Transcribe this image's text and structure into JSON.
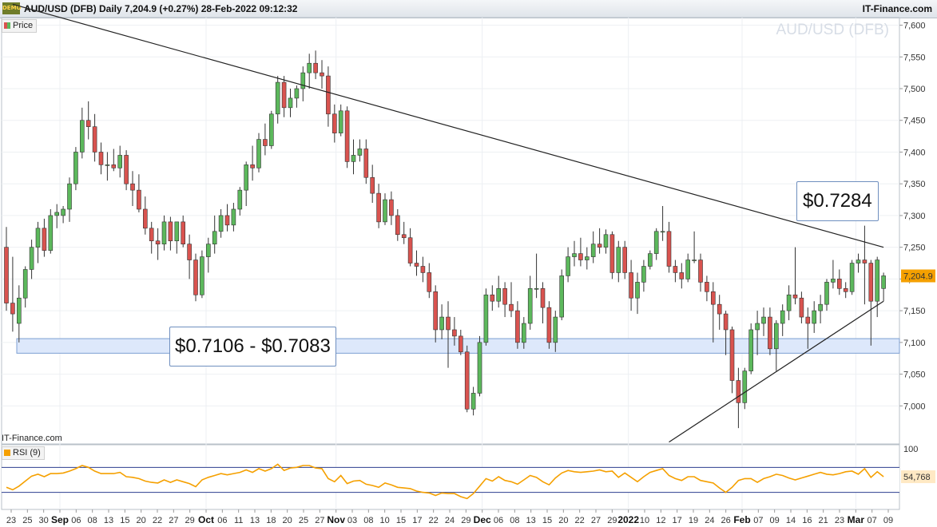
{
  "header": {
    "title": "AUD/USD (DFB) Daily 7,204.9 (+0.27%) 28-Feb-2022 09:12:32",
    "brand": "IT-Finance.com",
    "logo_text": "DEMO"
  },
  "watermark": "AUD/USD (DFB)",
  "source_label": "IT-Finance.com",
  "annotations": {
    "resistance_price": "$0.7284",
    "support_zone": "$0.7106 - $0.7083"
  },
  "colors": {
    "up": "#5cb85c",
    "down": "#d9534f",
    "rsi": "#f5a000",
    "zone": "#dde8fb",
    "current": "#f5a000"
  },
  "chart_data": [
    {
      "type": "candlestick",
      "series_name": "Price",
      "current_value": 7204.9,
      "current_label": "7,204.9",
      "y_ticks": [
        7000,
        7050,
        7100,
        7150,
        7200,
        7250,
        7300,
        7350,
        7400,
        7450,
        7500,
        7550,
        7600
      ],
      "y_tick_labels": [
        "7,000",
        "7,050",
        "7,100",
        "7,150",
        "7,200",
        "7,250",
        "7,300",
        "7,350",
        "7,400",
        "7,450",
        "7,500",
        "7,550",
        "7,600"
      ],
      "ylim": [
        6940,
        7612
      ],
      "x_tick_labels": [
        "23",
        "25",
        "30",
        "Sep",
        "06",
        "08",
        "13",
        "15",
        "20",
        "22",
        "27",
        "29",
        "Oct",
        "06",
        "11",
        "13",
        "18",
        "20",
        "25",
        "27",
        "Nov",
        "03",
        "08",
        "10",
        "15",
        "17",
        "22",
        "24",
        "29",
        "Dec",
        "06",
        "08",
        "13",
        "15",
        "20",
        "22",
        "27",
        "29",
        "2022",
        "10",
        "12",
        "17",
        "19",
        "24",
        "26",
        "Feb",
        "07",
        "09",
        "14",
        "16",
        "21",
        "23",
        "Mar",
        "07",
        "09"
      ],
      "major_labels": [
        "Sep",
        "Oct",
        "Nov",
        "Dec",
        "2022",
        "Feb",
        "Mar"
      ],
      "support_zone": [
        7083,
        7106
      ],
      "trendlines": [
        {
          "name": "descending resistance",
          "from": [
            1,
            7633
          ],
          "to": [
            139,
            7250
          ]
        },
        {
          "name": "ascending support",
          "from": [
            105,
            6943
          ],
          "to": [
            139,
            7165
          ]
        }
      ],
      "ohlc": [
        [
          7250,
          7282,
          7150,
          7162
        ],
        [
          7162,
          7235,
          7117,
          7145
        ],
        [
          7130,
          7190,
          7100,
          7170
        ],
        [
          7170,
          7220,
          7155,
          7215
        ],
        [
          7215,
          7262,
          7200,
          7250
        ],
        [
          7250,
          7290,
          7225,
          7280
        ],
        [
          7280,
          7295,
          7235,
          7245
        ],
        [
          7245,
          7310,
          7240,
          7300
        ],
        [
          7300,
          7318,
          7280,
          7305
        ],
        [
          7300,
          7315,
          7288,
          7310
        ],
        [
          7310,
          7360,
          7290,
          7350
        ],
        [
          7350,
          7408,
          7340,
          7400
        ],
        [
          7400,
          7470,
          7390,
          7450
        ],
        [
          7450,
          7480,
          7420,
          7440
        ],
        [
          7440,
          7460,
          7385,
          7400
        ],
        [
          7400,
          7415,
          7365,
          7380
        ],
        [
          7380,
          7400,
          7355,
          7380
        ],
        [
          7380,
          7405,
          7370,
          7375
        ],
        [
          7375,
          7410,
          7360,
          7395
        ],
        [
          7395,
          7403,
          7340,
          7350
        ],
        [
          7350,
          7370,
          7315,
          7340
        ],
        [
          7340,
          7365,
          7305,
          7310
        ],
        [
          7310,
          7330,
          7270,
          7280
        ],
        [
          7280,
          7290,
          7240,
          7260
        ],
        [
          7260,
          7280,
          7230,
          7255
        ],
        [
          7255,
          7300,
          7245,
          7290
        ],
        [
          7290,
          7298,
          7245,
          7260
        ],
        [
          7260,
          7290,
          7240,
          7290
        ],
        [
          7290,
          7300,
          7250,
          7255
        ],
        [
          7255,
          7270,
          7200,
          7230
        ],
        [
          7230,
          7240,
          7165,
          7175
        ],
        [
          7175,
          7245,
          7170,
          7235
        ],
        [
          7235,
          7265,
          7210,
          7255
        ],
        [
          7255,
          7300,
          7240,
          7275
        ],
        [
          7275,
          7310,
          7265,
          7300
        ],
        [
          7300,
          7318,
          7275,
          7285
        ],
        [
          7285,
          7320,
          7275,
          7310
        ],
        [
          7310,
          7345,
          7300,
          7340
        ],
        [
          7340,
          7385,
          7315,
          7380
        ],
        [
          7380,
          7410,
          7355,
          7375
        ],
        [
          7375,
          7430,
          7368,
          7420
        ],
        [
          7420,
          7445,
          7395,
          7410
        ],
        [
          7410,
          7465,
          7405,
          7460
        ],
        [
          7460,
          7520,
          7445,
          7510
        ],
        [
          7510,
          7520,
          7455,
          7470
        ],
        [
          7470,
          7500,
          7455,
          7485
        ],
        [
          7485,
          7505,
          7470,
          7500
        ],
        [
          7500,
          7535,
          7480,
          7525
        ],
        [
          7525,
          7555,
          7500,
          7540
        ],
        [
          7540,
          7560,
          7515,
          7525
        ],
        [
          7525,
          7545,
          7500,
          7520
        ],
        [
          7520,
          7535,
          7440,
          7460
        ],
        [
          7460,
          7475,
          7415,
          7430
        ],
        [
          7430,
          7475,
          7425,
          7465
        ],
        [
          7465,
          7472,
          7375,
          7385
        ],
        [
          7385,
          7420,
          7365,
          7395
        ],
        [
          7395,
          7420,
          7385,
          7405
        ],
        [
          7405,
          7420,
          7350,
          7360
        ],
        [
          7360,
          7380,
          7320,
          7335
        ],
        [
          7335,
          7350,
          7280,
          7290
        ],
        [
          7290,
          7335,
          7285,
          7325
        ],
        [
          7325,
          7338,
          7285,
          7300
        ],
        [
          7300,
          7310,
          7260,
          7270
        ],
        [
          7270,
          7290,
          7255,
          7265
        ],
        [
          7265,
          7280,
          7220,
          7225
        ],
        [
          7225,
          7245,
          7205,
          7220
        ],
        [
          7220,
          7235,
          7195,
          7210
        ],
        [
          7210,
          7225,
          7170,
          7180
        ],
        [
          7180,
          7190,
          7100,
          7120
        ],
        [
          7120,
          7160,
          7105,
          7140
        ],
        [
          7140,
          7165,
          7060,
          7120
        ],
        [
          7120,
          7140,
          7095,
          7110
        ],
        [
          7110,
          7120,
          7080,
          7085
        ],
        [
          7085,
          7095,
          6990,
          6995
        ],
        [
          6995,
          7030,
          6985,
          7020
        ],
        [
          7020,
          7110,
          7015,
          7100
        ],
        [
          7100,
          7185,
          7095,
          7175
        ],
        [
          7175,
          7190,
          7150,
          7165
        ],
        [
          7165,
          7205,
          7155,
          7185
        ],
        [
          7185,
          7195,
          7140,
          7160
        ],
        [
          7160,
          7195,
          7140,
          7150
        ],
        [
          7150,
          7165,
          7090,
          7100
        ],
        [
          7100,
          7140,
          7090,
          7130
        ],
        [
          7130,
          7205,
          7120,
          7185
        ],
        [
          7185,
          7240,
          7170,
          7185
        ],
        [
          7185,
          7195,
          7130,
          7155
        ],
        [
          7155,
          7165,
          7090,
          7100
        ],
        [
          7100,
          7150,
          7085,
          7140
        ],
        [
          7140,
          7215,
          7135,
          7205
        ],
        [
          7205,
          7250,
          7195,
          7235
        ],
        [
          7235,
          7260,
          7220,
          7240
        ],
        [
          7240,
          7265,
          7220,
          7230
        ],
        [
          7230,
          7250,
          7215,
          7235
        ],
        [
          7235,
          7275,
          7225,
          7255
        ],
        [
          7255,
          7280,
          7240,
          7250
        ],
        [
          7250,
          7278,
          7240,
          7270
        ],
        [
          7270,
          7275,
          7200,
          7210
        ],
        [
          7210,
          7260,
          7195,
          7250
        ],
        [
          7250,
          7260,
          7200,
          7210
        ],
        [
          7210,
          7230,
          7150,
          7170
        ],
        [
          7170,
          7210,
          7145,
          7195
        ],
        [
          7195,
          7230,
          7180,
          7220
        ],
        [
          7220,
          7245,
          7215,
          7240
        ],
        [
          7240,
          7280,
          7230,
          7275
        ],
        [
          7275,
          7315,
          7260,
          7275
        ],
        [
          7275,
          7290,
          7210,
          7220
        ],
        [
          7220,
          7230,
          7195,
          7210
        ],
        [
          7210,
          7225,
          7185,
          7200
        ],
        [
          7200,
          7240,
          7195,
          7230
        ],
        [
          7230,
          7275,
          7225,
          7230
        ],
        [
          7230,
          7240,
          7180,
          7195
        ],
        [
          7195,
          7205,
          7165,
          7180
        ],
        [
          7180,
          7195,
          7100,
          7160
        ],
        [
          7160,
          7175,
          7120,
          7145
        ],
        [
          7145,
          7150,
          7080,
          7120
        ],
        [
          7120,
          7125,
          7020,
          7040
        ],
        [
          7040,
          7060,
          6965,
          7005
        ],
        [
          7005,
          7060,
          6995,
          7055
        ],
        [
          7055,
          7130,
          7050,
          7120
        ],
        [
          7120,
          7150,
          7080,
          7130
        ],
        [
          7130,
          7155,
          7110,
          7140
        ],
        [
          7140,
          7155,
          7080,
          7090
        ],
        [
          7090,
          7135,
          7055,
          7130
        ],
        [
          7130,
          7160,
          7110,
          7150
        ],
        [
          7150,
          7190,
          7135,
          7175
        ],
        [
          7175,
          7250,
          7160,
          7170
        ],
        [
          7170,
          7180,
          7130,
          7140
        ],
        [
          7140,
          7155,
          7090,
          7130
        ],
        [
          7130,
          7165,
          7115,
          7150
        ],
        [
          7150,
          7175,
          7130,
          7160
        ],
        [
          7160,
          7200,
          7150,
          7195
        ],
        [
          7195,
          7230,
          7185,
          7200
        ],
        [
          7200,
          7215,
          7175,
          7185
        ],
        [
          7185,
          7195,
          7170,
          7180
        ],
        [
          7180,
          7230,
          7175,
          7225
        ],
        [
          7225,
          7240,
          7210,
          7230
        ],
        [
          7230,
          7284,
          7160,
          7225
        ],
        [
          7225,
          7230,
          7095,
          7165
        ],
        [
          7165,
          7235,
          7140,
          7230
        ],
        [
          7185,
          7210,
          7165,
          7205
        ]
      ]
    },
    {
      "type": "line",
      "series_name": "RSI (9)",
      "current_label": "54,768",
      "ylim": [
        0,
        100
      ],
      "y_tick_label": "100",
      "levels": [
        70,
        30
      ],
      "values": [
        38,
        34,
        40,
        48,
        56,
        59,
        55,
        60,
        60,
        61,
        64,
        68,
        73,
        70,
        64,
        60,
        60,
        60,
        62,
        55,
        54,
        52,
        48,
        46,
        45,
        50,
        46,
        50,
        47,
        44,
        39,
        50,
        54,
        57,
        60,
        58,
        60,
        62,
        66,
        62,
        68,
        64,
        68,
        75,
        65,
        69,
        70,
        73,
        73,
        69,
        68,
        52,
        47,
        57,
        44,
        48,
        49,
        43,
        41,
        38,
        45,
        42,
        38,
        37,
        36,
        32,
        30,
        29,
        25,
        29,
        28,
        28,
        23,
        20,
        28,
        40,
        52,
        48,
        55,
        49,
        47,
        43,
        50,
        57,
        54,
        47,
        42,
        53,
        61,
        65,
        63,
        62,
        63,
        64,
        66,
        63,
        64,
        54,
        61,
        54,
        47,
        55,
        62,
        65,
        68,
        57,
        52,
        49,
        55,
        55,
        49,
        47,
        45,
        37,
        30,
        38,
        49,
        52,
        52,
        46,
        52,
        55,
        59,
        57,
        53,
        50,
        53,
        56,
        59,
        62,
        59,
        58,
        60,
        63,
        64,
        59,
        68,
        54,
        63,
        55
      ]
    }
  ]
}
